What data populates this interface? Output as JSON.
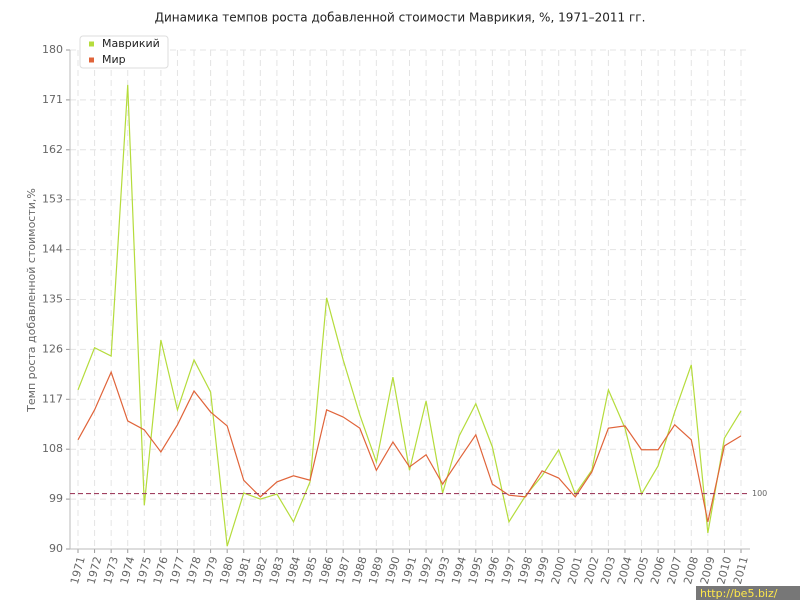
{
  "chart_data": {
    "type": "line",
    "title": "Динамика темпов роста добавленной стоимости Маврикия, %, 1971–2011 гг.",
    "y_label": "Темп роста добавленной стоимости,%",
    "categories": [
      "1971",
      "1972",
      "1973",
      "1974",
      "1975",
      "1976",
      "1977",
      "1978",
      "1979",
      "1980",
      "1981",
      "1982",
      "1983",
      "1984",
      "1985",
      "1986",
      "1987",
      "1988",
      "1989",
      "1990",
      "1991",
      "1992",
      "1993",
      "1994",
      "1995",
      "1996",
      "1997",
      "1998",
      "1999",
      "2000",
      "2001",
      "2002",
      "2003",
      "2004",
      "2005",
      "2006",
      "2007",
      "2008",
      "2009",
      "2010",
      "2011"
    ],
    "series": [
      {
        "name": "Маврикий",
        "color": "#b5dc3c",
        "values": [
          118.7,
          126.3,
          124.8,
          173.7,
          97.9,
          127.7,
          115.1,
          124.1,
          118.3,
          90.5,
          100.1,
          99.0,
          99.9,
          94.9,
          102.1,
          135.3,
          124.1,
          114.2,
          105.7,
          121.0,
          104.2,
          116.7,
          100.1,
          110.4,
          116.2,
          108.4,
          94.9,
          99.6,
          103.2,
          107.9,
          99.9,
          104.2,
          118.7,
          111.8,
          99.9,
          105.0,
          114.7,
          123.2,
          92.9,
          110.0,
          114.9
        ]
      },
      {
        "name": "Мир",
        "color": "#e0643a",
        "values": [
          109.7,
          115.1,
          121.9,
          113.1,
          111.5,
          107.5,
          112.4,
          118.5,
          114.7,
          112.2,
          102.4,
          99.4,
          102.1,
          103.2,
          102.4,
          115.1,
          113.8,
          111.8,
          104.2,
          109.3,
          104.8,
          107.0,
          101.7,
          106.2,
          110.6,
          101.7,
          99.7,
          99.4,
          104.1,
          102.8,
          99.4,
          103.9,
          111.8,
          112.2,
          107.9,
          107.9,
          112.4,
          109.7,
          94.9,
          108.6,
          110.4
        ]
      }
    ],
    "ylim": [
      90,
      180
    ],
    "yticks": [
      90,
      99,
      108,
      117,
      126,
      135,
      144,
      153,
      162,
      171,
      180
    ],
    "reference_line": 100,
    "reference_color": "#a04060",
    "grid": true,
    "legend": "top-left",
    "watermark": "http://be5.biz/"
  }
}
